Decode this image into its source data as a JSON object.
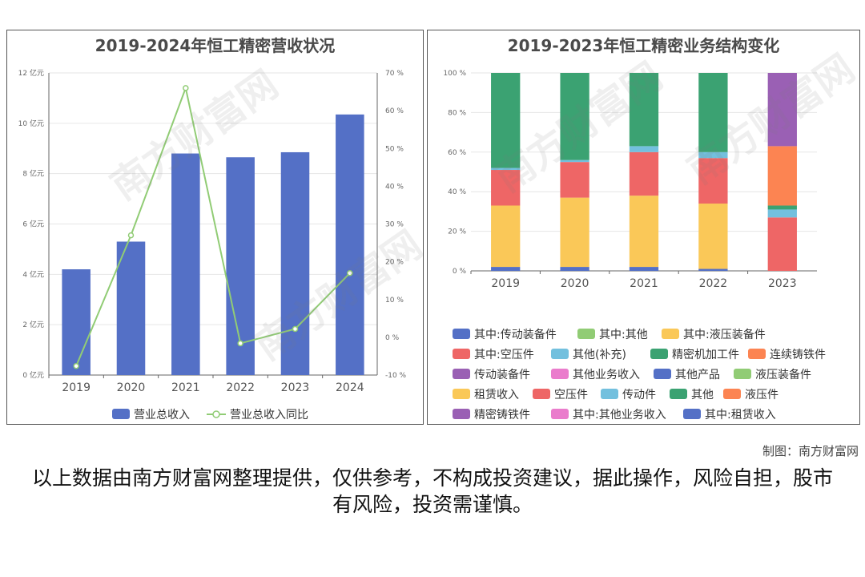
{
  "left_chart": {
    "title": "2019-2024年恒工精密营收状况",
    "legend": [
      "营业总收入",
      "营业总收入同比"
    ]
  },
  "right_chart": {
    "title": "2019-2023年恒工精密业务结构变化",
    "legend": [
      "其中:传动装备件",
      "其中:其他",
      "其中:液压装备件",
      "其中:空压件",
      "其他(补充)",
      "精密机加工件",
      "连续铸铁件",
      "传动装备件",
      "其他业务收入",
      "其他产品",
      "液压装备件",
      "租赁收入",
      "空压件",
      "传动件",
      "其他",
      "液压件",
      "精密铸铁件",
      "其中:其他业务收入",
      "其中:租赁收入"
    ]
  },
  "credit": "制图：南方财富网",
  "disclaimer": "以上数据由南方财富网整理提供，仅供参考，不构成投资建议，据此操作，风险自担，股市有风险，投资需谨慎。",
  "watermark": "南方财富网",
  "chart_data": [
    {
      "type": "bar",
      "title": "2019-2024年恒工精密营收状况",
      "categories": [
        "2019",
        "2020",
        "2021",
        "2022",
        "2023",
        "2024"
      ],
      "series": [
        {
          "name": "营业总收入",
          "type": "bar",
          "axis": "left",
          "values": [
            4.2,
            5.3,
            8.8,
            8.65,
            8.85,
            10.35
          ],
          "color": "#5470c6"
        },
        {
          "name": "营业总收入同比",
          "type": "line",
          "axis": "right",
          "values": [
            -7.6,
            27,
            66,
            -1.6,
            2.2,
            17
          ],
          "color": "#91cc75"
        }
      ],
      "y_left": {
        "ticks": [
          0,
          2,
          4,
          6,
          8,
          10,
          12
        ],
        "unit": "亿元",
        "range": [
          0,
          12
        ]
      },
      "y_right": {
        "ticks": [
          -10,
          0,
          10,
          20,
          30,
          40,
          50,
          60,
          70
        ],
        "unit": "%",
        "range": [
          -10,
          70
        ]
      },
      "grid": true
    },
    {
      "type": "bar",
      "stacked": true,
      "title": "2019-2023年恒工精密业务结构变化",
      "categories": [
        "2019",
        "2020",
        "2021",
        "2022",
        "2023"
      ],
      "y_ticks": [
        0,
        20,
        40,
        60,
        80,
        100
      ],
      "y_unit": "%",
      "series": [
        {
          "name": "其中:传动装备件",
          "values": [
            2,
            2,
            2,
            1,
            0
          ],
          "color": "#5470c6"
        },
        {
          "name": "其中:其他",
          "values": [
            0,
            0,
            0,
            0,
            0
          ],
          "color": "#91cc75"
        },
        {
          "name": "其中:液压装备件",
          "values": [
            31,
            35,
            36,
            33,
            0
          ],
          "color": "#fac858"
        },
        {
          "name": "其中:空压件",
          "values": [
            18,
            18,
            22,
            23,
            0
          ],
          "color": "#ee6666"
        },
        {
          "name": "其他(补充)",
          "values": [
            1,
            1,
            3,
            3,
            0
          ],
          "color": "#73c0de"
        },
        {
          "name": "精密机加工件",
          "values": [
            48,
            44,
            37,
            40,
            0
          ],
          "color": "#3ba272"
        },
        {
          "name": "连续铸铁件",
          "values": [
            0,
            0,
            0,
            0,
            0
          ],
          "color": "#fc8452"
        },
        {
          "name": "传动装备件",
          "values": [
            0,
            0,
            0,
            0,
            0
          ],
          "color": "#9a60b4"
        },
        {
          "name": "其他业务收入",
          "values": [
            0,
            0,
            0,
            0,
            0
          ],
          "color": "#ea7ccc"
        },
        {
          "name": "其他产品",
          "values": [
            0,
            0,
            0,
            0,
            0
          ],
          "color": "#5470c6"
        },
        {
          "name": "液压装备件",
          "values": [
            0,
            0,
            0,
            0,
            0
          ],
          "color": "#91cc75"
        },
        {
          "name": "租赁收入",
          "values": [
            0,
            0,
            0,
            0,
            0
          ],
          "color": "#fac858"
        },
        {
          "name": "空压件",
          "values": [
            0,
            0,
            0,
            0,
            27
          ],
          "color": "#ee6666"
        },
        {
          "name": "传动件",
          "values": [
            0,
            0,
            0,
            0,
            4
          ],
          "color": "#73c0de"
        },
        {
          "name": "其他",
          "values": [
            0,
            0,
            0,
            0,
            2
          ],
          "color": "#3ba272"
        },
        {
          "name": "液压件",
          "values": [
            0,
            0,
            0,
            0,
            30
          ],
          "color": "#fc8452"
        },
        {
          "name": "精密铸铁件",
          "values": [
            0,
            0,
            0,
            0,
            37
          ],
          "color": "#9a60b4"
        },
        {
          "name": "其中:其他业务收入",
          "values": [
            0,
            0,
            0,
            0,
            0
          ],
          "color": "#ea7ccc"
        },
        {
          "name": "其中:租赁收入",
          "values": [
            0,
            0,
            0,
            0,
            0
          ],
          "color": "#5470c6"
        }
      ]
    }
  ]
}
